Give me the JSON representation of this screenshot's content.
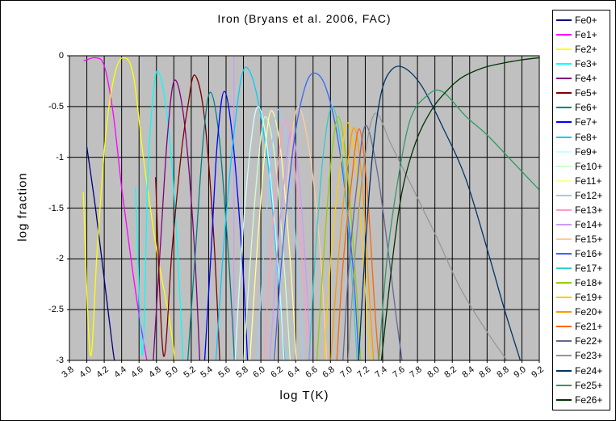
{
  "chart_data": {
    "type": "line",
    "title": "Iron (Bryans et al. 2006, FAC)",
    "xlabel": "log T(K)",
    "ylabel": "log fraction",
    "xlim": [
      3.8,
      9.2
    ],
    "ylim": [
      -3,
      0
    ],
    "x_tick_labels": [
      "3.8",
      "4.0",
      "4.2",
      "4.4",
      "4.6",
      "4.8",
      "5.0",
      "5.2",
      "5.4",
      "5.6",
      "5.8",
      "6.0",
      "6.2",
      "6.4",
      "6.6",
      "6.8",
      "7.0",
      "7.2",
      "7.4",
      "7.6",
      "7.8",
      "8.0",
      "8.2",
      "8.4",
      "8.6",
      "8.8",
      "9.0",
      "9.2"
    ],
    "y_tick_labels": [
      "0",
      "-0.5",
      "-1",
      "-1.5",
      "-2",
      "-2.5",
      "-3"
    ],
    "grid": {
      "show": true,
      "x_step": 0.2,
      "y_step": 0.5,
      "color": "#000000"
    },
    "plot_bg": "#C0C0C0",
    "legend_position": "right",
    "artifact_line": {
      "x": 5.69,
      "y_from": 0,
      "y_to": -3.05,
      "color": "#CC99FF"
    },
    "series": [
      {
        "name": "Fe0+",
        "color": "#000080",
        "points": [
          [
            4.0,
            -0.9
          ],
          [
            4.1,
            -1.5
          ],
          [
            4.2,
            -2.2
          ],
          [
            4.3,
            -2.9
          ],
          [
            4.33,
            -3.05
          ]
        ]
      },
      {
        "name": "Fe1+",
        "color": "#FF00FF",
        "points": [
          [
            3.97,
            -0.05
          ],
          [
            4.1,
            -0.02
          ],
          [
            4.2,
            -0.1
          ],
          [
            4.3,
            -0.55
          ],
          [
            4.4,
            -1.3
          ],
          [
            4.5,
            -1.95
          ],
          [
            4.6,
            -2.55
          ],
          [
            4.7,
            -3.05
          ]
        ]
      },
      {
        "name": "Fe2+",
        "color": "#FFFF00",
        "points": [
          [
            3.96,
            -1.35
          ],
          [
            4.04,
            -2.95
          ],
          [
            4.12,
            -1.9
          ],
          [
            4.22,
            -0.75
          ],
          [
            4.33,
            -0.15
          ],
          [
            4.44,
            -0.02
          ],
          [
            4.54,
            -0.22
          ],
          [
            4.65,
            -1.0
          ],
          [
            4.8,
            -1.9
          ],
          [
            4.95,
            -2.6
          ],
          [
            5.02,
            -3.05
          ]
        ]
      },
      {
        "name": "Fe3+",
        "color": "#00FFFF",
        "points": [
          [
            4.56,
            -1.3
          ],
          [
            4.64,
            -2.95
          ],
          [
            4.7,
            -1.2
          ],
          [
            4.75,
            -0.5
          ],
          [
            4.81,
            -0.15
          ],
          [
            4.91,
            -0.5
          ],
          [
            5.01,
            -1.45
          ],
          [
            5.11,
            -3.05
          ]
        ]
      },
      {
        "name": "Fe4+",
        "color": "#800080",
        "points": [
          [
            4.76,
            -3.05
          ],
          [
            4.85,
            -1.8
          ],
          [
            4.93,
            -0.75
          ],
          [
            5.01,
            -0.24
          ],
          [
            5.12,
            -0.65
          ],
          [
            5.23,
            -1.8
          ],
          [
            5.3,
            -3.05
          ]
        ]
      },
      {
        "name": "Fe5+",
        "color": "#800000",
        "points": [
          [
            4.79,
            -1.2
          ],
          [
            4.88,
            -2.95
          ],
          [
            4.98,
            -1.9
          ],
          [
            5.08,
            -1.0
          ],
          [
            5.16,
            -0.5
          ],
          [
            5.24,
            -0.19
          ],
          [
            5.35,
            -0.6
          ],
          [
            5.46,
            -1.8
          ],
          [
            5.53,
            -3.05
          ]
        ]
      },
      {
        "name": "Fe6+",
        "color": "#008080",
        "points": [
          [
            5.16,
            -3.0
          ],
          [
            5.25,
            -1.9
          ],
          [
            5.34,
            -0.8
          ],
          [
            5.42,
            -0.36
          ],
          [
            5.52,
            -0.8
          ],
          [
            5.63,
            -2.0
          ],
          [
            5.7,
            -3.05
          ]
        ]
      },
      {
        "name": "Fe7+",
        "color": "#0000FF",
        "points": [
          [
            5.35,
            -3.05
          ],
          [
            5.43,
            -1.9
          ],
          [
            5.5,
            -0.85
          ],
          [
            5.58,
            -0.35
          ],
          [
            5.68,
            -0.85
          ],
          [
            5.79,
            -2.05
          ],
          [
            5.85,
            -3.05
          ]
        ]
      },
      {
        "name": "Fe8+",
        "color": "#00CCFF",
        "points": [
          [
            5.48,
            -3.05
          ],
          [
            5.57,
            -1.9
          ],
          [
            5.68,
            -0.85
          ],
          [
            5.78,
            -0.2
          ],
          [
            5.87,
            -0.15
          ],
          [
            5.98,
            -0.5
          ],
          [
            6.1,
            -1.2
          ],
          [
            6.22,
            -2.4
          ],
          [
            6.28,
            -3.05
          ]
        ]
      },
      {
        "name": "Fe9+",
        "color": "#CCFFFF",
        "points": [
          [
            5.7,
            -3.05
          ],
          [
            5.78,
            -1.9
          ],
          [
            5.88,
            -0.9
          ],
          [
            5.97,
            -0.5
          ],
          [
            6.08,
            -0.95
          ],
          [
            6.2,
            -2.1
          ],
          [
            6.27,
            -3.05
          ]
        ]
      },
      {
        "name": "Fe10+",
        "color": "#CCFFCC",
        "points": [
          [
            5.8,
            -3.05
          ],
          [
            5.88,
            -2.0
          ],
          [
            5.97,
            -1.05
          ],
          [
            6.05,
            -0.6
          ],
          [
            6.16,
            -1.0
          ],
          [
            6.27,
            -2.1
          ],
          [
            6.34,
            -3.05
          ]
        ]
      },
      {
        "name": "Fe11+",
        "color": "#FFFF99",
        "points": [
          [
            5.87,
            -3.05
          ],
          [
            5.95,
            -2.0
          ],
          [
            6.04,
            -1.0
          ],
          [
            6.12,
            -0.54
          ],
          [
            6.23,
            -0.95
          ],
          [
            6.34,
            -2.05
          ],
          [
            6.41,
            -3.05
          ]
        ]
      },
      {
        "name": "Fe12+",
        "color": "#99CCFF",
        "points": [
          [
            5.95,
            -3.05
          ],
          [
            6.03,
            -2.0
          ],
          [
            6.12,
            -0.95
          ],
          [
            6.2,
            -0.53
          ],
          [
            6.31,
            -0.95
          ],
          [
            6.42,
            -2.05
          ],
          [
            6.49,
            -3.05
          ]
        ]
      },
      {
        "name": "Fe13+",
        "color": "#FF99CC",
        "points": [
          [
            6.03,
            -3.05
          ],
          [
            6.11,
            -2.0
          ],
          [
            6.2,
            -1.05
          ],
          [
            6.29,
            -0.63
          ],
          [
            6.39,
            -1.1
          ],
          [
            6.49,
            -2.2
          ],
          [
            6.55,
            -3.05
          ]
        ]
      },
      {
        "name": "Fe14+",
        "color": "#CC99FF",
        "points": [
          [
            6.1,
            -3.05
          ],
          [
            6.18,
            -2.05
          ],
          [
            6.27,
            -1.2
          ],
          [
            6.35,
            -0.75
          ],
          [
            6.44,
            -1.2
          ],
          [
            6.53,
            -2.3
          ],
          [
            6.58,
            -3.05
          ]
        ]
      },
      {
        "name": "Fe15+",
        "color": "#FFCC99",
        "points": [
          [
            6.16,
            -3.05
          ],
          [
            6.25,
            -1.9
          ],
          [
            6.34,
            -0.95
          ],
          [
            6.43,
            -0.5
          ],
          [
            6.56,
            -0.95
          ],
          [
            6.68,
            -1.9
          ],
          [
            6.76,
            -3.05
          ]
        ]
      },
      {
        "name": "Fe16+",
        "color": "#3366FF",
        "points": [
          [
            6.15,
            -3.05
          ],
          [
            6.25,
            -1.9
          ],
          [
            6.38,
            -0.85
          ],
          [
            6.5,
            -0.33
          ],
          [
            6.61,
            -0.17
          ],
          [
            6.75,
            -0.32
          ],
          [
            6.9,
            -0.9
          ],
          [
            7.05,
            -2.0
          ],
          [
            7.13,
            -3.05
          ]
        ]
      },
      {
        "name": "Fe17+",
        "color": "#33CCCC",
        "points": [
          [
            6.55,
            -3.05
          ],
          [
            6.63,
            -1.9
          ],
          [
            6.72,
            -0.95
          ],
          [
            6.82,
            -0.5
          ],
          [
            6.93,
            -0.95
          ],
          [
            7.04,
            -2.1
          ],
          [
            7.11,
            -3.05
          ]
        ]
      },
      {
        "name": "Fe18+",
        "color": "#99CC00",
        "points": [
          [
            6.64,
            -3.05
          ],
          [
            6.72,
            -2.0
          ],
          [
            6.8,
            -1.1
          ],
          [
            6.89,
            -0.6
          ],
          [
            6.99,
            -1.1
          ],
          [
            7.09,
            -2.2
          ],
          [
            7.15,
            -3.05
          ]
        ]
      },
      {
        "name": "Fe19+",
        "color": "#FFCC00",
        "points": [
          [
            6.72,
            -3.05
          ],
          [
            6.8,
            -2.05
          ],
          [
            6.91,
            -1.1
          ],
          [
            7.0,
            -0.66
          ],
          [
            7.1,
            -1.15
          ],
          [
            7.2,
            -2.3
          ],
          [
            7.26,
            -3.05
          ]
        ]
      },
      {
        "name": "Fe20+",
        "color": "#FF9900",
        "points": [
          [
            6.8,
            -3.05
          ],
          [
            6.88,
            -2.1
          ],
          [
            6.98,
            -1.2
          ],
          [
            7.07,
            -0.71
          ],
          [
            7.16,
            -1.2
          ],
          [
            7.25,
            -2.4
          ],
          [
            7.3,
            -3.05
          ]
        ]
      },
      {
        "name": "Fe21+",
        "color": "#FF6600",
        "points": [
          [
            6.87,
            -3.05
          ],
          [
            6.94,
            -2.1
          ],
          [
            7.04,
            -1.25
          ],
          [
            7.13,
            -0.72
          ],
          [
            7.22,
            -1.3
          ],
          [
            7.31,
            -2.5
          ],
          [
            7.36,
            -3.05
          ]
        ]
      },
      {
        "name": "Fe22+",
        "color": "#666699",
        "points": [
          [
            6.94,
            -3.05
          ],
          [
            7.01,
            -2.1
          ],
          [
            7.1,
            -1.3
          ],
          [
            7.2,
            -0.69
          ],
          [
            7.33,
            -1.1
          ],
          [
            7.46,
            -1.9
          ],
          [
            7.56,
            -2.6
          ],
          [
            7.63,
            -3.05
          ]
        ]
      },
      {
        "name": "Fe23+",
        "color": "#969696",
        "points": [
          [
            7.0,
            -3.05
          ],
          [
            7.08,
            -2.0
          ],
          [
            7.18,
            -1.1
          ],
          [
            7.31,
            -0.57
          ],
          [
            7.5,
            -0.88
          ],
          [
            7.72,
            -1.26
          ],
          [
            8.0,
            -1.75
          ],
          [
            8.3,
            -2.3
          ],
          [
            8.6,
            -2.72
          ],
          [
            8.87,
            -3.05
          ]
        ]
      },
      {
        "name": "Fe24+",
        "color": "#003366",
        "points": [
          [
            7.12,
            -3.05
          ],
          [
            7.2,
            -1.9
          ],
          [
            7.28,
            -1.0
          ],
          [
            7.38,
            -0.38
          ],
          [
            7.5,
            -0.14
          ],
          [
            7.65,
            -0.12
          ],
          [
            7.85,
            -0.3
          ],
          [
            8.1,
            -0.72
          ],
          [
            8.35,
            -1.2
          ],
          [
            8.6,
            -1.9
          ],
          [
            8.8,
            -2.5
          ],
          [
            9.0,
            -3.05
          ]
        ]
      },
      {
        "name": "Fe25+",
        "color": "#339966",
        "points": [
          [
            7.35,
            -3.05
          ],
          [
            7.45,
            -2.0
          ],
          [
            7.58,
            -1.2
          ],
          [
            7.72,
            -0.62
          ],
          [
            7.9,
            -0.4
          ],
          [
            8.08,
            -0.35
          ],
          [
            8.36,
            -0.6
          ],
          [
            8.6,
            -0.78
          ],
          [
            8.9,
            -1.05
          ],
          [
            9.2,
            -1.32
          ]
        ]
      },
      {
        "name": "Fe26+",
        "color": "#003300",
        "points": [
          [
            7.38,
            -3.05
          ],
          [
            7.5,
            -2.1
          ],
          [
            7.62,
            -1.35
          ],
          [
            7.78,
            -0.85
          ],
          [
            7.95,
            -0.55
          ],
          [
            8.1,
            -0.38
          ],
          [
            8.3,
            -0.22
          ],
          [
            8.55,
            -0.12
          ],
          [
            8.8,
            -0.07
          ],
          [
            9.0,
            -0.04
          ],
          [
            9.2,
            -0.02
          ]
        ]
      }
    ]
  }
}
